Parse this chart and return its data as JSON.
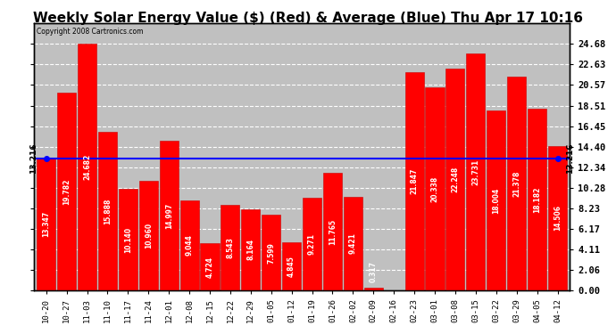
{
  "title": "Weekly Solar Energy Value ($) (Red) & Average (Blue) Thu Apr 17 10:16",
  "copyright": "Copyright 2008 Cartronics.com",
  "categories": [
    "10-20",
    "10-27",
    "11-03",
    "11-10",
    "11-17",
    "11-24",
    "12-01",
    "12-08",
    "12-15",
    "12-22",
    "12-29",
    "01-05",
    "01-12",
    "01-19",
    "01-26",
    "02-02",
    "02-09",
    "02-16",
    "02-23",
    "03-01",
    "03-08",
    "03-15",
    "03-22",
    "03-29",
    "04-05",
    "04-12"
  ],
  "values": [
    13.347,
    19.782,
    24.682,
    15.888,
    10.14,
    10.96,
    14.997,
    9.044,
    4.724,
    8.543,
    8.164,
    7.599,
    4.845,
    9.271,
    11.765,
    9.421,
    0.317,
    0.0,
    21.847,
    20.338,
    22.248,
    23.731,
    18.004,
    21.378,
    18.182,
    14.506
  ],
  "average": 13.216,
  "bar_color": "#ff0000",
  "average_color": "#0000ff",
  "background_color": "#ffffff",
  "plot_bg_color": "#c0c0c0",
  "yticks": [
    0.0,
    2.06,
    4.11,
    6.17,
    8.23,
    10.28,
    12.34,
    14.4,
    16.45,
    18.51,
    20.57,
    22.63,
    24.68
  ],
  "ylim": [
    0.0,
    26.74
  ],
  "title_fontsize": 11,
  "bar_edge_color": "#cc0000",
  "avg_label": "13.216",
  "avg_dot_color": "#0000ff",
  "label_fontsize": 5.5,
  "tick_fontsize": 7.5
}
